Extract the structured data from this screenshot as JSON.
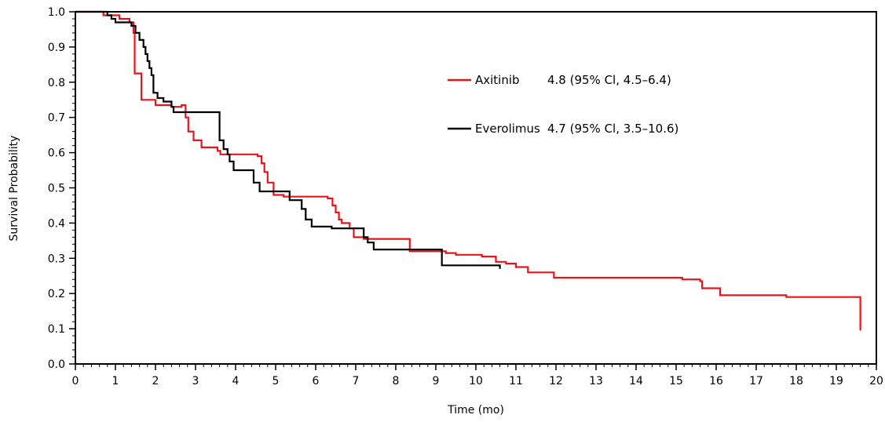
{
  "chart_data": {
    "type": "line",
    "title": "",
    "xlabel": "Time (mo)",
    "ylabel": "Survival Probability",
    "xlim": [
      0,
      20
    ],
    "ylim": [
      0,
      1.0
    ],
    "x_ticks": [
      0,
      1,
      2,
      3,
      4,
      5,
      6,
      7,
      8,
      9,
      10,
      11,
      12,
      13,
      14,
      15,
      16,
      17,
      18,
      19,
      20
    ],
    "y_ticks": [
      "0.0",
      "0.1",
      "0.2",
      "0.3",
      "0.4",
      "0.5",
      "0.6",
      "0.7",
      "0.8",
      "0.9",
      "1.0"
    ],
    "grid": false,
    "legend_position": "top-right",
    "series": [
      {
        "name": "Axitinib",
        "label": "4.8 (95% Cl, 4.5–6.4)",
        "color": "#e8141c",
        "step": true,
        "points": [
          [
            0,
            1.0
          ],
          [
            0.7,
            0.99
          ],
          [
            1.1,
            0.98
          ],
          [
            1.35,
            0.97
          ],
          [
            1.45,
            0.94
          ],
          [
            1.48,
            0.825
          ],
          [
            1.62,
            0.825
          ],
          [
            1.65,
            0.75
          ],
          [
            1.95,
            0.75
          ],
          [
            2.0,
            0.735
          ],
          [
            2.4,
            0.73
          ],
          [
            2.65,
            0.735
          ],
          [
            2.75,
            0.7
          ],
          [
            2.82,
            0.66
          ],
          [
            2.95,
            0.635
          ],
          [
            3.15,
            0.615
          ],
          [
            3.55,
            0.605
          ],
          [
            3.62,
            0.595
          ],
          [
            4.4,
            0.595
          ],
          [
            4.55,
            0.59
          ],
          [
            4.65,
            0.57
          ],
          [
            4.72,
            0.545
          ],
          [
            4.8,
            0.515
          ],
          [
            4.95,
            0.48
          ],
          [
            5.2,
            0.475
          ],
          [
            6.3,
            0.47
          ],
          [
            6.42,
            0.45
          ],
          [
            6.5,
            0.43
          ],
          [
            6.58,
            0.41
          ],
          [
            6.65,
            0.4
          ],
          [
            6.85,
            0.385
          ],
          [
            6.95,
            0.36
          ],
          [
            7.2,
            0.355
          ],
          [
            7.8,
            0.355
          ],
          [
            7.9,
            0.355
          ],
          [
            8.35,
            0.32
          ],
          [
            9.1,
            0.32
          ],
          [
            9.25,
            0.315
          ],
          [
            9.5,
            0.31
          ],
          [
            10.15,
            0.305
          ],
          [
            10.5,
            0.29
          ],
          [
            10.75,
            0.285
          ],
          [
            11.0,
            0.275
          ],
          [
            11.3,
            0.26
          ],
          [
            11.95,
            0.245
          ],
          [
            15.1,
            0.245
          ],
          [
            15.15,
            0.24
          ],
          [
            15.6,
            0.235
          ],
          [
            15.65,
            0.215
          ],
          [
            16.1,
            0.195
          ],
          [
            17.75,
            0.19
          ],
          [
            19.6,
            0.19
          ],
          [
            19.6,
            0.095
          ]
        ]
      },
      {
        "name": "Everolimus",
        "label": "4.7 (95% Cl, 3.5–10.6)",
        "color": "#000000",
        "step": true,
        "points": [
          [
            0,
            1.0
          ],
          [
            0.8,
            0.99
          ],
          [
            0.9,
            0.98
          ],
          [
            1.0,
            0.97
          ],
          [
            1.4,
            0.96
          ],
          [
            1.5,
            0.94
          ],
          [
            1.6,
            0.92
          ],
          [
            1.7,
            0.9
          ],
          [
            1.75,
            0.88
          ],
          [
            1.8,
            0.86
          ],
          [
            1.85,
            0.84
          ],
          [
            1.9,
            0.82
          ],
          [
            1.95,
            0.77
          ],
          [
            2.05,
            0.755
          ],
          [
            2.2,
            0.745
          ],
          [
            2.4,
            0.73
          ],
          [
            2.45,
            0.715
          ],
          [
            3.55,
            0.715
          ],
          [
            3.6,
            0.635
          ],
          [
            3.7,
            0.61
          ],
          [
            3.8,
            0.595
          ],
          [
            3.85,
            0.575
          ],
          [
            3.95,
            0.55
          ],
          [
            4.45,
            0.515
          ],
          [
            4.6,
            0.49
          ],
          [
            4.95,
            0.49
          ],
          [
            5.15,
            0.49
          ],
          [
            5.35,
            0.465
          ],
          [
            5.65,
            0.44
          ],
          [
            5.75,
            0.41
          ],
          [
            5.9,
            0.39
          ],
          [
            6.4,
            0.385
          ],
          [
            7.15,
            0.385
          ],
          [
            7.2,
            0.36
          ],
          [
            7.3,
            0.345
          ],
          [
            7.45,
            0.325
          ],
          [
            9.15,
            0.28
          ],
          [
            10.1,
            0.28
          ],
          [
            10.6,
            0.28
          ],
          [
            10.6,
            0.27
          ]
        ]
      }
    ]
  }
}
